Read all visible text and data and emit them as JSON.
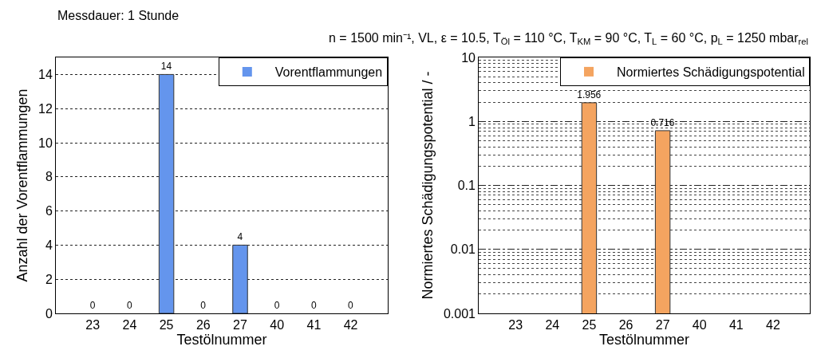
{
  "chart_data": [
    {
      "type": "bar",
      "title": "Messdauer: 1 Stunde",
      "subtitle": "n = 1500 min⁻¹, VL, ε = 10.5, T$_{Öl}$ = 110 °C, T$_{KM}$ = 90 °C, T$_{L}$ = 60 °C, p$_{L}$ = 1250 mbar$_{rel}$",
      "xlabel": "Testölnummer",
      "ylabel": "Anzahl der Vorentflammungen",
      "categories": [
        "23",
        "24",
        "25",
        "26",
        "27",
        "40",
        "41",
        "42"
      ],
      "series": [
        {
          "name": "Vorentflammungen",
          "color": "#6495ed",
          "values": [
            0,
            0,
            14,
            0,
            4,
            0,
            0,
            0
          ]
        }
      ],
      "ylim": [
        0,
        15
      ],
      "yticks": [
        0,
        2,
        4,
        6,
        8,
        10,
        12,
        14
      ],
      "grid": "y",
      "legend": "top right",
      "data_labels": true
    },
    {
      "type": "bar",
      "xlabel": "Testölnummer",
      "ylabel": "Normiertes Schädigungspotential / -",
      "categories": [
        "23",
        "24",
        "25",
        "26",
        "27",
        "40",
        "41",
        "42"
      ],
      "series": [
        {
          "name": "Normiertes Schädigungspotential",
          "color": "#f4a460",
          "values": [
            null,
            null,
            1.956,
            null,
            0.716,
            null,
            null,
            null
          ]
        }
      ],
      "log": "y",
      "ylim": [
        0.001,
        10
      ],
      "yticks": [
        0.001,
        0.01,
        0.1,
        1,
        10
      ],
      "grid": "y",
      "legend": "top right",
      "data_labels": true
    }
  ]
}
